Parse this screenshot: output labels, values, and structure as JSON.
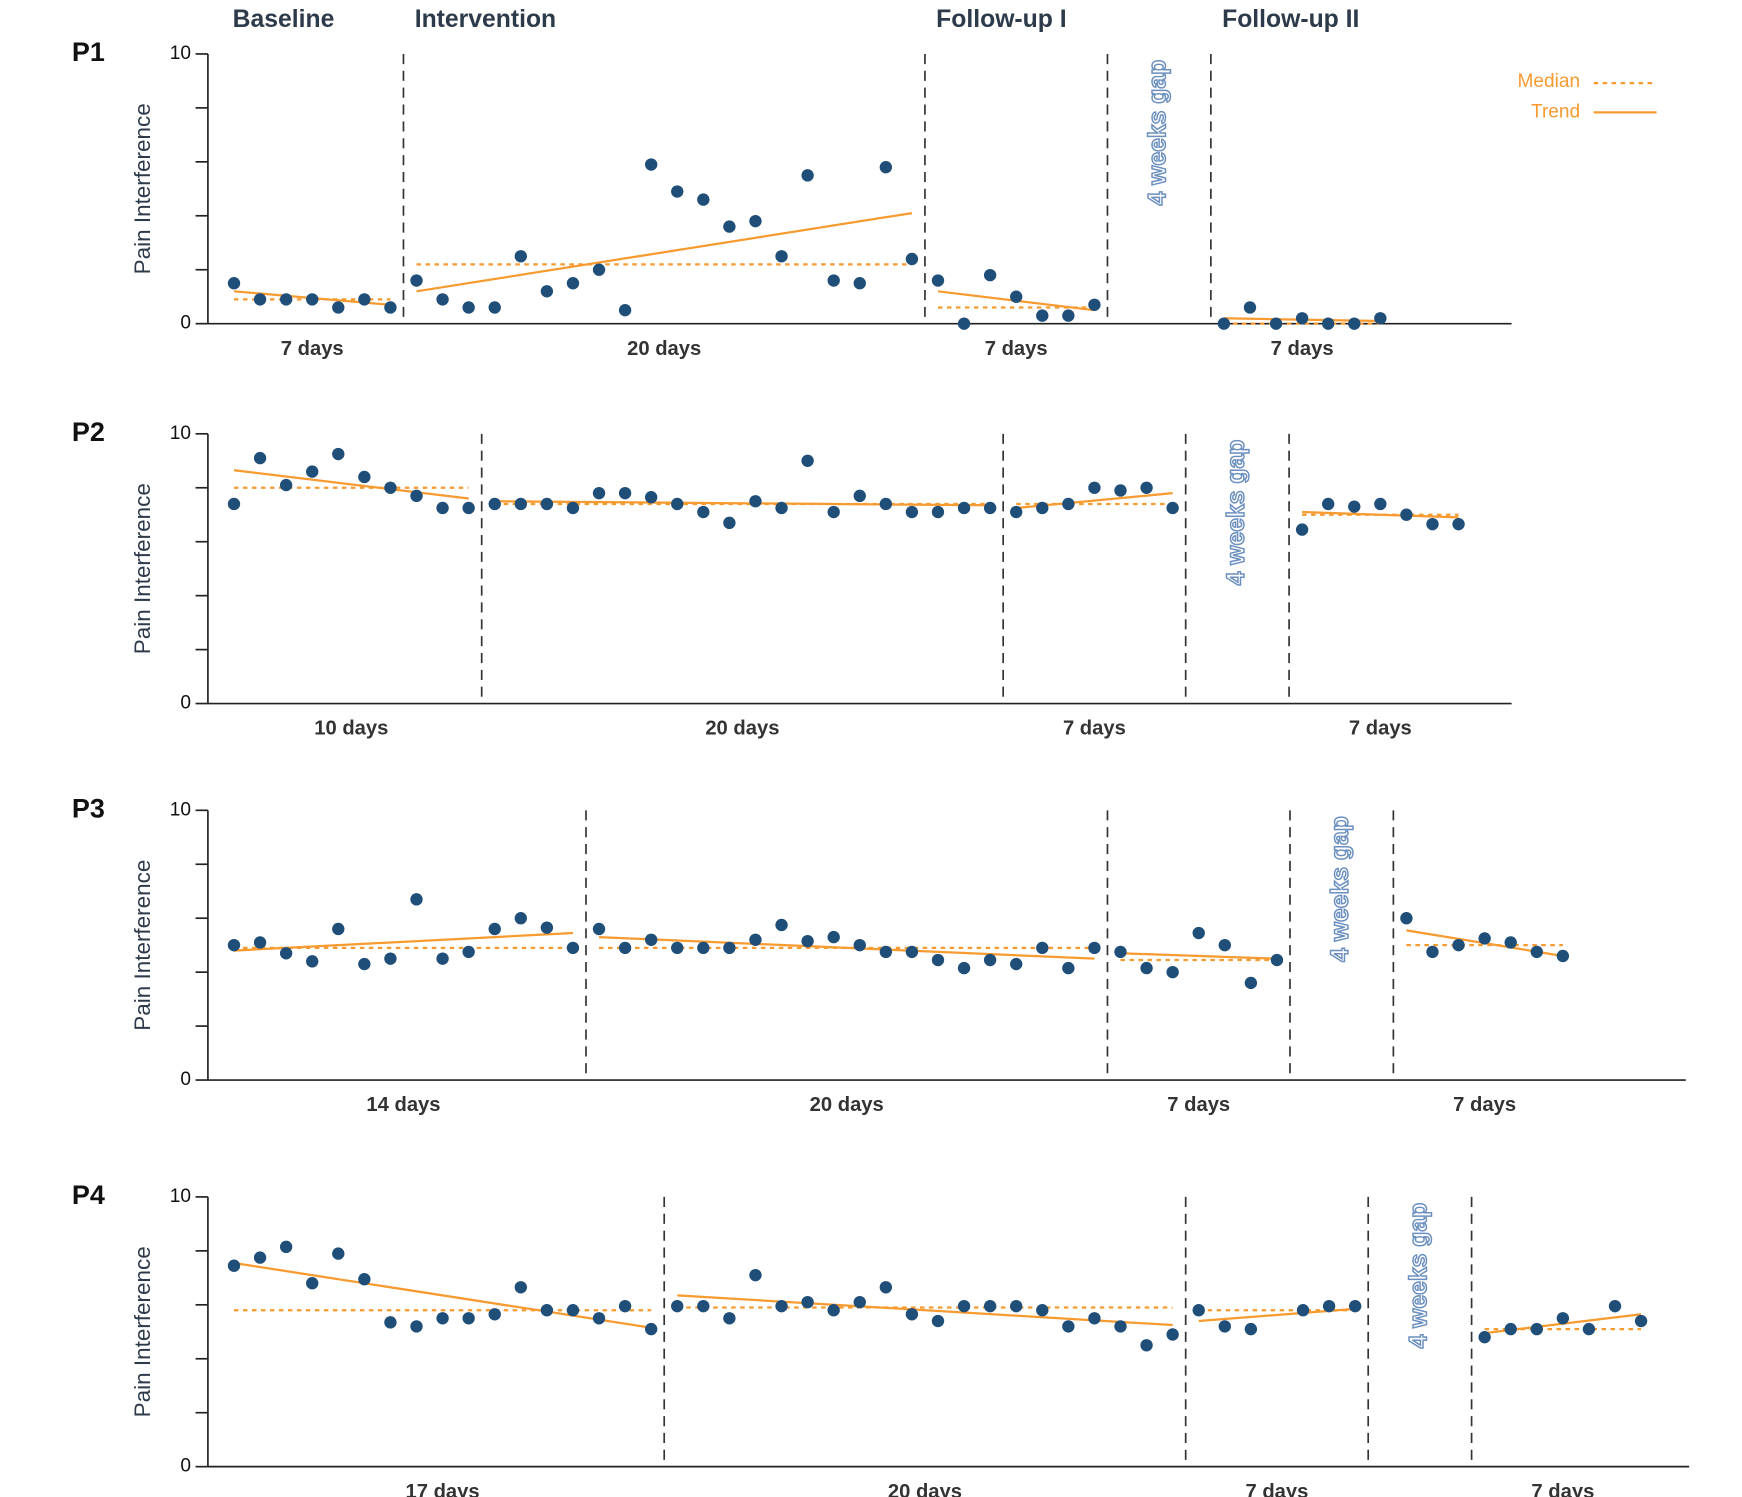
{
  "phase_names": [
    "Baseline",
    "Intervention",
    "Follow-up I",
    "Follow-up II"
  ],
  "legend": {
    "median": {
      "label": "Median",
      "color": "#f79a30"
    },
    "trend": {
      "label": "Trend",
      "color": "#f79a30"
    },
    "corner": "top-right"
  },
  "chart_data": [
    {
      "type": "scatter",
      "title": "P1",
      "ylabel": "Pain Interference",
      "ylim": [
        0,
        10
      ],
      "yticks": [
        0,
        10
      ],
      "minor_yticks": [
        2,
        4,
        6,
        8
      ],
      "color": "#1f4e79",
      "gap_label": "4 weeks gap",
      "gap_after_phase": 2,
      "phases": [
        {
          "duration": "7 days",
          "values": [
            1.5,
            0.9,
            0.9,
            0.9,
            0.6,
            0.9,
            0.6
          ],
          "median": 0.9,
          "trend": [
            1.2,
            0.7
          ]
        },
        {
          "duration": "20 days",
          "values": [
            1.6,
            0.9,
            0.6,
            0.6,
            2.5,
            1.2,
            1.5,
            2.0,
            0.5,
            5.9,
            4.9,
            4.6,
            3.6,
            3.8,
            2.5,
            5.5,
            1.6,
            1.5,
            5.8,
            2.4
          ],
          "median": 2.2,
          "trend": [
            1.2,
            4.1
          ]
        },
        {
          "duration": "7 days",
          "values": [
            1.6,
            0,
            1.8,
            1.0,
            0.3,
            0.3,
            0.7
          ],
          "median": 0.6,
          "trend": [
            1.2,
            0.5
          ]
        },
        {
          "duration": "7 days",
          "values": [
            0,
            0.6,
            0,
            0.2,
            0,
            0,
            0.2
          ],
          "median": 0,
          "trend": [
            0.2,
            0.1
          ]
        }
      ]
    },
    {
      "type": "scatter",
      "title": "P2",
      "ylabel": "Pain Interference",
      "ylim": [
        0,
        10
      ],
      "yticks": [
        0,
        10
      ],
      "minor_yticks": [
        2,
        4,
        6,
        8
      ],
      "color": "#1f4e79",
      "gap_label": "4 weeks gap",
      "gap_after_phase": 2,
      "phases": [
        {
          "duration": "10 days",
          "values": [
            7.4,
            9.1,
            8.1,
            8.6,
            9.25,
            8.4,
            8.0,
            7.7,
            7.25,
            7.25
          ],
          "median": 8.0,
          "trend": [
            8.65,
            7.6
          ]
        },
        {
          "duration": "20 days",
          "values": [
            7.4,
            7.4,
            7.4,
            7.25,
            7.8,
            7.8,
            7.65,
            7.4,
            7.1,
            6.7,
            7.5,
            7.25,
            9.0,
            7.1,
            7.7,
            7.4,
            7.1,
            7.1,
            7.25,
            7.25
          ],
          "median": 7.4,
          "trend": [
            7.5,
            7.35
          ]
        },
        {
          "duration": "7 days",
          "values": [
            7.1,
            7.25,
            7.4,
            8.0,
            7.9,
            8.0,
            7.25
          ],
          "median": 7.4,
          "trend": [
            7.25,
            7.8
          ]
        },
        {
          "duration": "7 days",
          "values": [
            6.45,
            7.4,
            7.3,
            7.4,
            7.0,
            6.65,
            6.65
          ],
          "median": 7.0,
          "trend": [
            7.1,
            6.9
          ]
        }
      ]
    },
    {
      "type": "scatter",
      "title": "P3",
      "ylabel": "Pain Interference",
      "ylim": [
        0,
        10
      ],
      "yticks": [
        0,
        10
      ],
      "minor_yticks": [
        2,
        4,
        6,
        8
      ],
      "color": "#1f4e79",
      "gap_label": "4 weeks gap",
      "gap_after_phase": 2,
      "phases": [
        {
          "duration": "14 days",
          "values": [
            5.0,
            5.1,
            4.7,
            4.4,
            5.6,
            4.3,
            4.5,
            6.7,
            4.5,
            4.75,
            5.6,
            6.0,
            5.65,
            4.9
          ],
          "median": 4.9,
          "trend": [
            4.8,
            5.45
          ]
        },
        {
          "duration": "20 days",
          "values": [
            5.6,
            4.9,
            5.2,
            4.9,
            4.9,
            4.9,
            5.2,
            5.75,
            5.15,
            5.3,
            5.0,
            4.75,
            4.75,
            4.45,
            4.15,
            4.45,
            4.3,
            4.9,
            4.15,
            4.9
          ],
          "median": 4.9,
          "trend": [
            5.3,
            4.5
          ]
        },
        {
          "duration": "7 days",
          "values": [
            4.75,
            4.15,
            4.0,
            5.45,
            5.0,
            3.6,
            4.45
          ],
          "median": 4.45,
          "trend": [
            4.7,
            4.5
          ]
        },
        {
          "duration": "7 days",
          "values": [
            6.0,
            4.75,
            5.0,
            5.25,
            5.1,
            4.75,
            4.6
          ],
          "median": 5.0,
          "trend": [
            5.55,
            4.6
          ]
        }
      ]
    },
    {
      "type": "scatter",
      "title": "P4",
      "ylabel": "Pain Interference",
      "ylim": [
        0,
        10
      ],
      "yticks": [
        0,
        10
      ],
      "minor_yticks": [
        2,
        4,
        6,
        8
      ],
      "color": "#1f4e79",
      "gap_label": "4 weeks gap",
      "gap_after_phase": 2,
      "phases": [
        {
          "duration": "17 days",
          "values": [
            7.45,
            7.75,
            8.15,
            6.8,
            7.9,
            6.95,
            5.35,
            5.2,
            5.5,
            5.5,
            5.65,
            6.65,
            5.8,
            5.8,
            5.5,
            5.95,
            5.1
          ],
          "median": 5.8,
          "trend": [
            7.55,
            5.15
          ]
        },
        {
          "duration": "20 days",
          "values": [
            5.95,
            5.95,
            5.5,
            7.1,
            5.95,
            6.1,
            5.8,
            6.1,
            6.65,
            5.65,
            5.4,
            5.95,
            5.95,
            5.95,
            5.8,
            5.2,
            5.5,
            5.2,
            4.5,
            4.9
          ],
          "median": 5.9,
          "trend": [
            6.35,
            5.25
          ]
        },
        {
          "duration": "7 days",
          "values": [
            5.8,
            5.2,
            5.1,
            null,
            5.8,
            5.95,
            5.95
          ],
          "median": 5.8,
          "trend": [
            5.4,
            5.85
          ]
        },
        {
          "duration": "7 days",
          "values": [
            4.8,
            5.1,
            5.1,
            5.5,
            5.1,
            5.95,
            5.4
          ],
          "median": 5.1,
          "trend": [
            4.95,
            5.65
          ]
        }
      ]
    }
  ]
}
